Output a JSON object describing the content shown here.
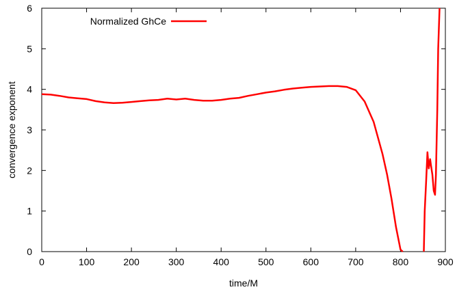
{
  "chart_data": {
    "type": "line",
    "xlabel": "time/M",
    "ylabel": "convergence exponent",
    "xlim": [
      0,
      900
    ],
    "ylim": [
      0,
      6
    ],
    "xticks": [
      0,
      100,
      200,
      300,
      400,
      500,
      600,
      700,
      800,
      900
    ],
    "yticks": [
      0,
      1,
      2,
      3,
      4,
      5,
      6
    ],
    "grid": false,
    "legend_position": "top-left",
    "series": [
      {
        "name": "Normalized GhCe",
        "color": "#ff0000",
        "x": [
          0,
          20,
          40,
          60,
          80,
          100,
          120,
          140,
          160,
          180,
          200,
          220,
          240,
          260,
          280,
          300,
          320,
          340,
          360,
          380,
          400,
          420,
          440,
          460,
          480,
          500,
          520,
          540,
          560,
          580,
          600,
          620,
          640,
          660,
          680,
          700,
          720,
          740,
          760,
          770,
          780,
          790,
          800,
          805
        ],
        "y": [
          3.88,
          3.87,
          3.84,
          3.8,
          3.78,
          3.76,
          3.71,
          3.68,
          3.66,
          3.67,
          3.69,
          3.71,
          3.73,
          3.74,
          3.77,
          3.75,
          3.77,
          3.74,
          3.72,
          3.72,
          3.74,
          3.77,
          3.79,
          3.84,
          3.88,
          3.92,
          3.95,
          3.99,
          4.02,
          4.04,
          4.06,
          4.07,
          4.08,
          4.08,
          4.06,
          3.98,
          3.7,
          3.2,
          2.4,
          1.9,
          1.3,
          0.6,
          0.05,
          0.0
        ]
      },
      {
        "name": "",
        "color": "#ff0000",
        "x": [
          852,
          854,
          857,
          860,
          863,
          866,
          868,
          871,
          874,
          877,
          879,
          882,
          884,
          887
        ],
        "y": [
          0.0,
          1.0,
          1.7,
          2.45,
          2.05,
          2.28,
          2.12,
          1.9,
          1.5,
          1.4,
          1.9,
          3.5,
          5.0,
          6.0
        ]
      }
    ]
  }
}
